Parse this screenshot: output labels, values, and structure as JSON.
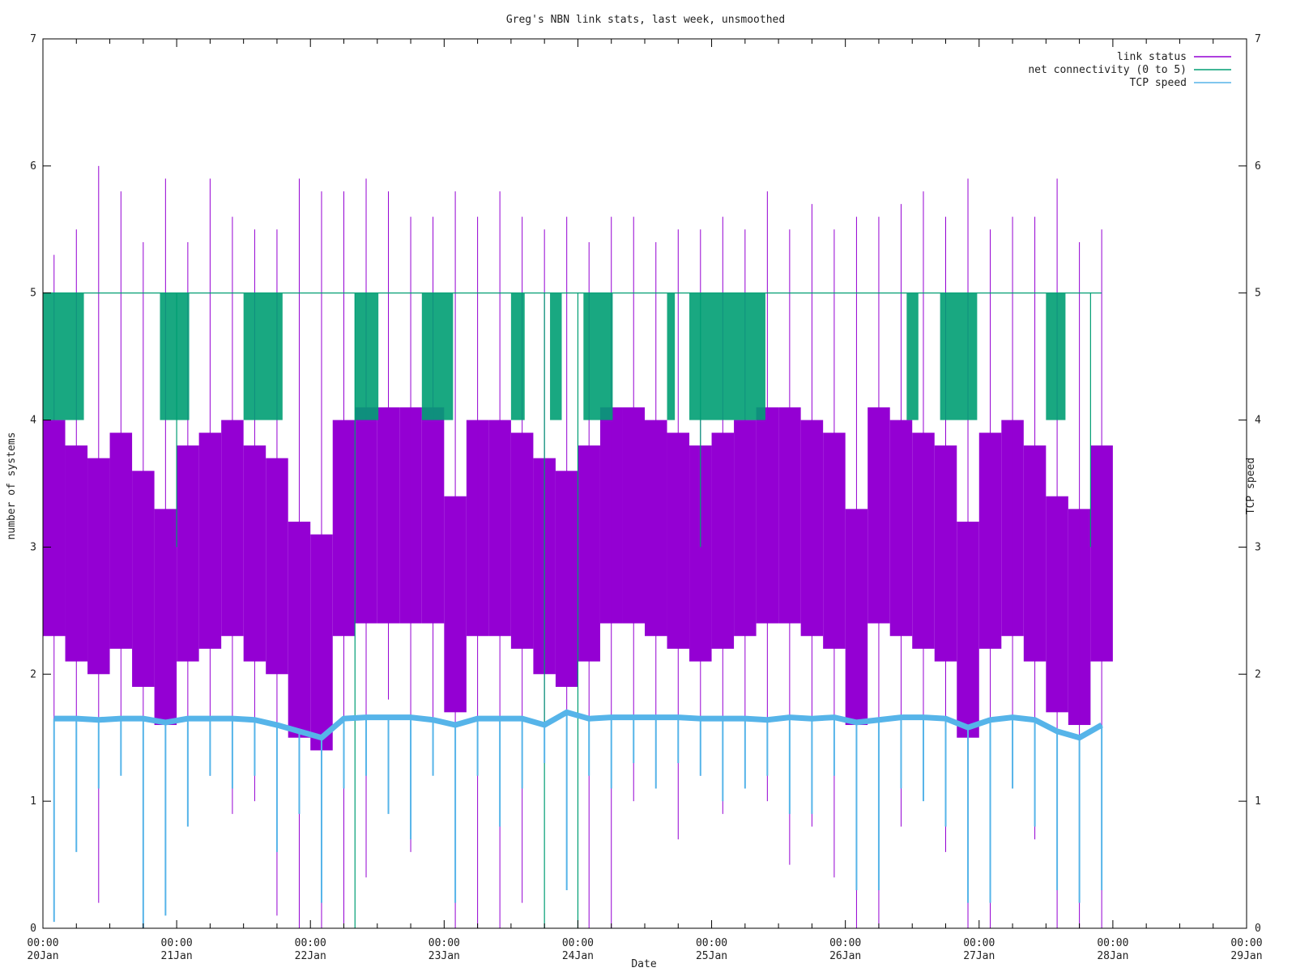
{
  "chart_data": {
    "type": "line",
    "title": "Greg's NBN link stats, last week, unsmoothed",
    "xlabel": "Date",
    "ylabel": "number of systems",
    "y2label": "TCP speed",
    "ylim": [
      0,
      7
    ],
    "y2lim": [
      0,
      7
    ],
    "xlim": [
      "2024-01-20T00:00",
      "2024-01-29T00:00"
    ],
    "yticks": [
      "0",
      "1",
      "2",
      "3",
      "4",
      "5",
      "6",
      "7"
    ],
    "y2ticks": [
      "0",
      "1",
      "2",
      "3",
      "4",
      "5",
      "6",
      "7"
    ],
    "xticks": [
      {
        "t": "2024-01-20T00:00",
        "time": "00:00",
        "date": "20Jan"
      },
      {
        "t": "2024-01-21T00:00",
        "time": "00:00",
        "date": "21Jan"
      },
      {
        "t": "2024-01-22T00:00",
        "time": "00:00",
        "date": "22Jan"
      },
      {
        "t": "2024-01-23T00:00",
        "time": "00:00",
        "date": "23Jan"
      },
      {
        "t": "2024-01-24T00:00",
        "time": "00:00",
        "date": "24Jan"
      },
      {
        "t": "2024-01-25T00:00",
        "time": "00:00",
        "date": "25Jan"
      },
      {
        "t": "2024-01-26T00:00",
        "time": "00:00",
        "date": "26Jan"
      },
      {
        "t": "2024-01-27T00:00",
        "time": "00:00",
        "date": "27Jan"
      },
      {
        "t": "2024-01-28T00:00",
        "time": "00:00",
        "date": "28Jan"
      },
      {
        "t": "2024-01-29T00:00",
        "time": "00:00",
        "date": "29Jan"
      }
    ],
    "grid": false,
    "legend_position": "top-right",
    "series": [
      {
        "name": "link status",
        "color": "#9400d3",
        "x": [
          "2024-01-20T02:00",
          "2024-01-20T06:00",
          "2024-01-20T10:00",
          "2024-01-20T14:00",
          "2024-01-20T18:00",
          "2024-01-20T22:00",
          "2024-01-21T02:00",
          "2024-01-21T06:00",
          "2024-01-21T10:00",
          "2024-01-21T14:00",
          "2024-01-21T18:00",
          "2024-01-21T22:00",
          "2024-01-22T02:00",
          "2024-01-22T06:00",
          "2024-01-22T10:00",
          "2024-01-22T14:00",
          "2024-01-22T18:00",
          "2024-01-22T22:00",
          "2024-01-23T02:00",
          "2024-01-23T06:00",
          "2024-01-23T10:00",
          "2024-01-23T14:00",
          "2024-01-23T18:00",
          "2024-01-23T22:00",
          "2024-01-24T02:00",
          "2024-01-24T06:00",
          "2024-01-24T10:00",
          "2024-01-24T14:00",
          "2024-01-24T18:00",
          "2024-01-24T22:00",
          "2024-01-25T02:00",
          "2024-01-25T06:00",
          "2024-01-25T10:00",
          "2024-01-25T14:00",
          "2024-01-25T18:00",
          "2024-01-25T22:00",
          "2024-01-26T02:00",
          "2024-01-26T06:00",
          "2024-01-26T10:00",
          "2024-01-26T14:00",
          "2024-01-26T18:00",
          "2024-01-26T22:00",
          "2024-01-27T02:00",
          "2024-01-27T06:00",
          "2024-01-27T10:00",
          "2024-01-27T14:00",
          "2024-01-27T18:00",
          "2024-01-27T22:00"
        ],
        "y": [
          3.2,
          3.0,
          2.9,
          3.1,
          2.8,
          2.5,
          3.0,
          3.1,
          3.2,
          3.0,
          2.9,
          2.4,
          2.3,
          3.2,
          3.3,
          3.3,
          3.3,
          3.3,
          2.6,
          3.2,
          3.2,
          3.1,
          2.9,
          2.8,
          3.0,
          3.3,
          3.3,
          3.2,
          3.1,
          3.0,
          3.1,
          3.2,
          3.3,
          3.3,
          3.2,
          3.1,
          2.5,
          3.3,
          3.2,
          3.1,
          3.0,
          2.4,
          3.1,
          3.2,
          3.0,
          2.6,
          2.5,
          3.0
        ],
        "ymin": [
          1.0,
          1.3,
          0.2,
          1.5,
          0.6,
          0.4,
          1.1,
          1.2,
          0.9,
          1.0,
          0.1,
          0.0,
          0.0,
          0.0,
          0.4,
          1.8,
          0.6,
          1.5,
          0.0,
          0.0,
          0.0,
          0.2,
          1.3,
          0.6,
          0.0,
          0.0,
          1.0,
          1.3,
          0.7,
          1.2,
          0.9,
          1.2,
          1.0,
          0.5,
          0.8,
          0.4,
          0.0,
          0.0,
          0.8,
          1.2,
          0.6,
          0.0,
          0.0,
          1.1,
          0.7,
          0.0,
          0.0,
          0.0
        ],
        "ymax": [
          5.3,
          5.5,
          6.0,
          5.8,
          5.4,
          5.9,
          5.4,
          5.9,
          5.6,
          5.5,
          5.5,
          5.9,
          5.8,
          5.8,
          5.9,
          5.8,
          5.6,
          5.6,
          5.8,
          5.6,
          5.8,
          5.6,
          5.5,
          5.6,
          5.4,
          5.6,
          5.6,
          5.4,
          5.5,
          5.5,
          5.6,
          5.5,
          5.8,
          5.5,
          5.7,
          5.5,
          5.6,
          5.6,
          5.7,
          5.8,
          5.6,
          5.9,
          5.5,
          5.6,
          5.6,
          5.9,
          5.4,
          5.5
        ]
      },
      {
        "name": "net connectivity (0 to 5)",
        "color": "#009e73",
        "x": [
          "2024-01-20T00:00",
          "2024-01-20T21:00",
          "2024-01-21T12:00",
          "2024-01-22T08:00",
          "2024-01-22T20:00",
          "2024-01-23T12:00",
          "2024-01-23T19:00",
          "2024-01-24T01:00",
          "2024-01-24T16:00",
          "2024-01-24T20:00",
          "2024-01-26T11:00",
          "2024-01-26T17:00",
          "2024-01-27T12:00",
          "2024-01-27T22:00"
        ],
        "y": [
          5,
          5,
          5,
          5,
          5,
          5,
          5,
          5,
          5,
          5,
          5,
          5,
          5,
          5
        ],
        "ymin": [
          4,
          4,
          4,
          4,
          4,
          4,
          4,
          4,
          4,
          4,
          4,
          4,
          4,
          3
        ],
        "notable_drops": [
          {
            "t": "2024-01-21T00:00",
            "min": 3
          },
          {
            "t": "2024-01-22T08:00",
            "min": 0
          },
          {
            "t": "2024-01-23T18:00",
            "min": 0
          },
          {
            "t": "2024-01-24T00:00",
            "min": 0
          },
          {
            "t": "2024-01-24T22:00",
            "min": 3
          },
          {
            "t": "2024-01-27T20:00",
            "min": 3
          }
        ]
      },
      {
        "name": "TCP speed",
        "color": "#56b4e9",
        "x": [
          "2024-01-20T02:00",
          "2024-01-20T06:00",
          "2024-01-20T10:00",
          "2024-01-20T14:00",
          "2024-01-20T18:00",
          "2024-01-20T22:00",
          "2024-01-21T02:00",
          "2024-01-21T06:00",
          "2024-01-21T10:00",
          "2024-01-21T14:00",
          "2024-01-21T18:00",
          "2024-01-21T22:00",
          "2024-01-22T02:00",
          "2024-01-22T06:00",
          "2024-01-22T10:00",
          "2024-01-22T14:00",
          "2024-01-22T18:00",
          "2024-01-22T22:00",
          "2024-01-23T02:00",
          "2024-01-23T06:00",
          "2024-01-23T10:00",
          "2024-01-23T14:00",
          "2024-01-23T18:00",
          "2024-01-23T22:00",
          "2024-01-24T02:00",
          "2024-01-24T06:00",
          "2024-01-24T10:00",
          "2024-01-24T14:00",
          "2024-01-24T18:00",
          "2024-01-24T22:00",
          "2024-01-25T02:00",
          "2024-01-25T06:00",
          "2024-01-25T10:00",
          "2024-01-25T14:00",
          "2024-01-25T18:00",
          "2024-01-25T22:00",
          "2024-01-26T02:00",
          "2024-01-26T06:00",
          "2024-01-26T10:00",
          "2024-01-26T14:00",
          "2024-01-26T18:00",
          "2024-01-26T22:00",
          "2024-01-27T02:00",
          "2024-01-27T06:00",
          "2024-01-27T10:00",
          "2024-01-27T14:00",
          "2024-01-27T18:00",
          "2024-01-27T22:00"
        ],
        "y": [
          1.65,
          1.65,
          1.64,
          1.65,
          1.65,
          1.62,
          1.65,
          1.65,
          1.65,
          1.64,
          1.6,
          1.55,
          1.5,
          1.65,
          1.66,
          1.66,
          1.66,
          1.64,
          1.6,
          1.65,
          1.65,
          1.65,
          1.6,
          1.7,
          1.65,
          1.66,
          1.66,
          1.66,
          1.66,
          1.65,
          1.65,
          1.65,
          1.64,
          1.66,
          1.65,
          1.66,
          1.62,
          1.64,
          1.66,
          1.66,
          1.65,
          1.58,
          1.64,
          1.66,
          1.64,
          1.55,
          1.5,
          1.6
        ],
        "ymin": [
          0.05,
          0.6,
          1.1,
          1.2,
          0.0,
          0.1,
          0.8,
          1.2,
          1.1,
          1.2,
          0.6,
          0.9,
          0.2,
          1.1,
          1.2,
          0.9,
          0.7,
          1.2,
          0.2,
          1.2,
          0.8,
          1.1,
          1.3,
          0.3,
          1.2,
          1.1,
          1.3,
          1.1,
          1.3,
          1.2,
          1.0,
          1.1,
          1.2,
          0.9,
          0.9,
          1.2,
          0.3,
          0.3,
          1.1,
          1.0,
          0.8,
          0.2,
          0.2,
          1.1,
          0.8,
          0.3,
          0.2,
          0.3
        ]
      }
    ]
  }
}
